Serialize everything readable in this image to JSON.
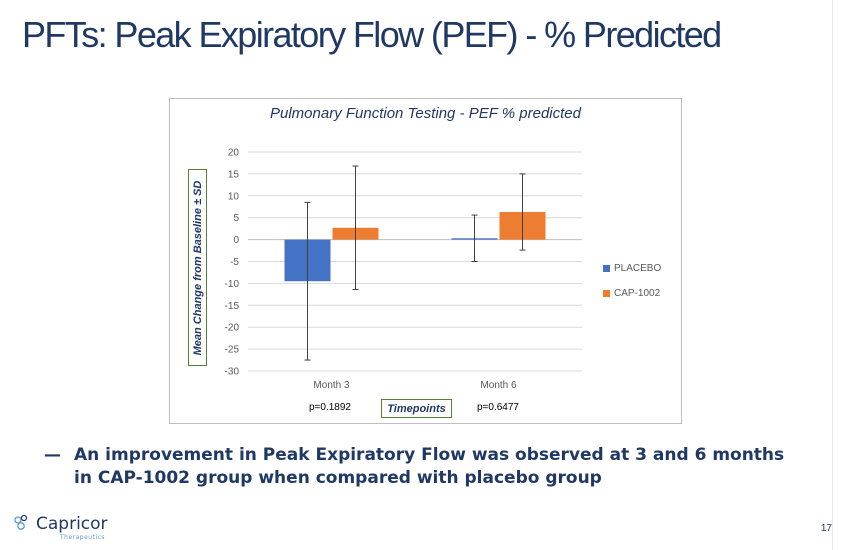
{
  "slide": {
    "title": "PFTs: Peak Expiratory Flow (PEF) - % Predicted",
    "bullet_dash": "—",
    "bullet_text": "An improvement in Peak Expiratory Flow was observed at 3 and 6 months in CAP-1002 group when compared with placebo group",
    "page_number": "17",
    "logo_name": "Capricor",
    "logo_sub": "Therapeutics"
  },
  "chart_data": {
    "type": "bar",
    "title": "Pulmonary Function Testing  - PEF % predicted",
    "ylabel": "Mean Change from Baseline ± SD",
    "xlabel": "Timepoints",
    "categories": [
      "Month 3",
      "Month 6"
    ],
    "pvalues": [
      "p=0.1892",
      "p=0.6477"
    ],
    "ylim": [
      -30,
      20
    ],
    "yticks": [
      "20",
      "15",
      "10",
      "5",
      "0",
      "-5",
      "-10",
      "-15",
      "-20",
      "-25",
      "-30"
    ],
    "gridlines": true,
    "legend_position": "right",
    "series": [
      {
        "name": "PLACEBO",
        "color": "#4472c4",
        "values": [
          -9.5,
          0.3
        ],
        "errors": [
          18,
          5.3
        ]
      },
      {
        "name": "CAP-1002",
        "color": "#ed7d31",
        "values": [
          2.7,
          6.3
        ],
        "errors": [
          14.1,
          8.7
        ]
      }
    ]
  }
}
